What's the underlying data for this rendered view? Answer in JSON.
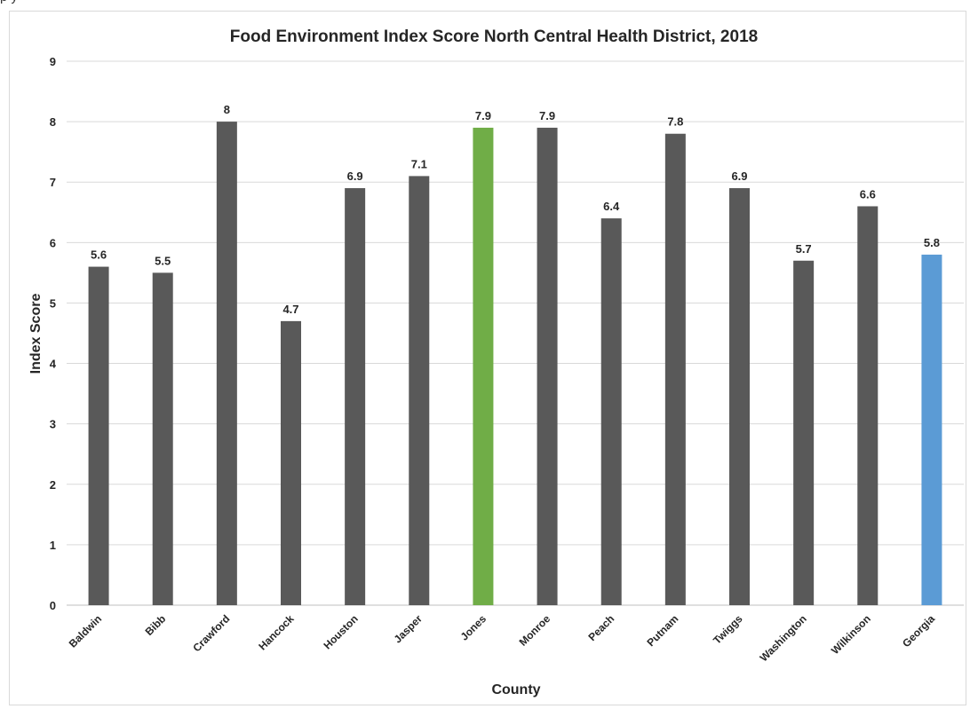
{
  "caption": "p                                        y",
  "chart_data": {
    "type": "bar",
    "title": "Food Environment Index Score North Central Health District, 2018",
    "xlabel": "County",
    "ylabel": "Index Score",
    "ylim": [
      0,
      9
    ],
    "yticks": [
      "0",
      "1",
      "2",
      "3",
      "4",
      "5",
      "6",
      "7",
      "8",
      "9"
    ],
    "grid": true,
    "categories": [
      "Baldwin",
      "Bibb",
      "Crawford",
      "Hancock",
      "Houston",
      "Jasper",
      "Jones",
      "Monroe",
      "Peach",
      "Putnam",
      "Twiggs",
      "Washington",
      "Wilkinson",
      "Georgia"
    ],
    "values": [
      5.6,
      5.5,
      8,
      4.7,
      6.9,
      7.1,
      7.9,
      7.9,
      6.4,
      7.8,
      6.9,
      5.7,
      6.6,
      5.8
    ],
    "data_labels": [
      "5.6",
      "5.5",
      "8",
      "4.7",
      "6.9",
      "7.1",
      "7.9",
      "7.9",
      "6.4",
      "7.8",
      "6.9",
      "5.7",
      "6.6",
      "5.8"
    ],
    "colors": {
      "default": "#595959",
      "Jones": "#70AD47",
      "Georgia": "#5B9BD5",
      "grid": "#d9d9d9",
      "text": "#262626"
    }
  }
}
